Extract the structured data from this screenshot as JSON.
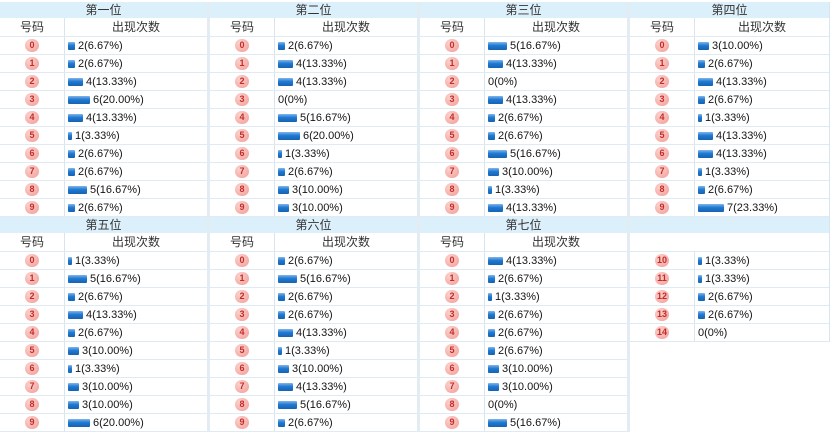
{
  "colors": {
    "bar": "#1d79d4",
    "badge_bg": "#f5a9a3",
    "badge_text": "#c32b2b",
    "header_band": "#dcf0fb",
    "row_line": "#dfeaf2",
    "divider": "#d8e5f0",
    "boundary": "#e3ecf3",
    "text": "#333333"
  },
  "headers": {
    "number": "号码",
    "count": "出现次数"
  },
  "chart_data": [
    {
      "type": "bar",
      "title": "第一位",
      "categories": [
        "0",
        "1",
        "2",
        "3",
        "4",
        "5",
        "6",
        "7",
        "8",
        "9"
      ],
      "values": [
        2,
        2,
        4,
        6,
        4,
        1,
        2,
        2,
        5,
        2
      ],
      "labels": [
        "2(6.67%)",
        "2(6.67%)",
        "4(13.33%)",
        "6(20.00%)",
        "4(13.33%)",
        "1(3.33%)",
        "2(6.67%)",
        "2(6.67%)",
        "5(16.67%)",
        "2(6.67%)"
      ]
    },
    {
      "type": "bar",
      "title": "第二位",
      "categories": [
        "0",
        "1",
        "2",
        "3",
        "4",
        "5",
        "6",
        "7",
        "8",
        "9"
      ],
      "values": [
        2,
        4,
        4,
        0,
        5,
        6,
        1,
        2,
        3,
        3
      ],
      "labels": [
        "2(6.67%)",
        "4(13.33%)",
        "4(13.33%)",
        "0(0%)",
        "5(16.67%)",
        "6(20.00%)",
        "1(3.33%)",
        "2(6.67%)",
        "3(10.00%)",
        "3(10.00%)"
      ]
    },
    {
      "type": "bar",
      "title": "第三位",
      "categories": [
        "0",
        "1",
        "2",
        "3",
        "4",
        "5",
        "6",
        "7",
        "8",
        "9"
      ],
      "values": [
        5,
        4,
        0,
        4,
        2,
        2,
        5,
        3,
        1,
        4
      ],
      "labels": [
        "5(16.67%)",
        "4(13.33%)",
        "0(0%)",
        "4(13.33%)",
        "2(6.67%)",
        "2(6.67%)",
        "5(16.67%)",
        "3(10.00%)",
        "1(3.33%)",
        "4(13.33%)"
      ]
    },
    {
      "type": "bar",
      "title": "第四位",
      "categories": [
        "0",
        "1",
        "2",
        "3",
        "4",
        "5",
        "6",
        "7",
        "8",
        "9"
      ],
      "values": [
        3,
        2,
        4,
        2,
        1,
        4,
        4,
        1,
        2,
        7
      ],
      "labels": [
        "3(10.00%)",
        "2(6.67%)",
        "4(13.33%)",
        "2(6.67%)",
        "1(3.33%)",
        "4(13.33%)",
        "4(13.33%)",
        "1(3.33%)",
        "2(6.67%)",
        "7(23.33%)"
      ]
    },
    {
      "type": "bar",
      "title": "第五位",
      "categories": [
        "0",
        "1",
        "2",
        "3",
        "4",
        "5",
        "6",
        "7",
        "8",
        "9"
      ],
      "values": [
        1,
        5,
        2,
        4,
        2,
        3,
        1,
        3,
        3,
        6
      ],
      "labels": [
        "1(3.33%)",
        "5(16.67%)",
        "2(6.67%)",
        "4(13.33%)",
        "2(6.67%)",
        "3(10.00%)",
        "1(3.33%)",
        "3(10.00%)",
        "3(10.00%)",
        "6(20.00%)"
      ]
    },
    {
      "type": "bar",
      "title": "第六位",
      "categories": [
        "0",
        "1",
        "2",
        "3",
        "4",
        "5",
        "6",
        "7",
        "8",
        "9"
      ],
      "values": [
        2,
        5,
        2,
        2,
        4,
        1,
        3,
        4,
        5,
        2
      ],
      "labels": [
        "2(6.67%)",
        "5(16.67%)",
        "2(6.67%)",
        "2(6.67%)",
        "4(13.33%)",
        "1(3.33%)",
        "3(10.00%)",
        "4(13.33%)",
        "5(16.67%)",
        "2(6.67%)"
      ]
    },
    {
      "type": "bar",
      "title": "第七位",
      "categories": [
        "0",
        "1",
        "2",
        "3",
        "4",
        "5",
        "6",
        "7",
        "8",
        "9"
      ],
      "values": [
        4,
        2,
        1,
        2,
        2,
        2,
        3,
        3,
        0,
        5
      ],
      "labels": [
        "4(13.33%)",
        "2(6.67%)",
        "1(3.33%)",
        "2(6.67%)",
        "2(6.67%)",
        "2(6.67%)",
        "3(10.00%)",
        "3(10.00%)",
        "0(0%)",
        "5(16.67%)"
      ]
    },
    {
      "type": "bar",
      "title": "",
      "categories": [
        "10",
        "11",
        "12",
        "13",
        "14"
      ],
      "values": [
        1,
        1,
        2,
        2,
        0
      ],
      "labels": [
        "1(3.33%)",
        "1(3.33%)",
        "2(6.67%)",
        "2(6.67%)",
        "0(0%)"
      ]
    }
  ]
}
